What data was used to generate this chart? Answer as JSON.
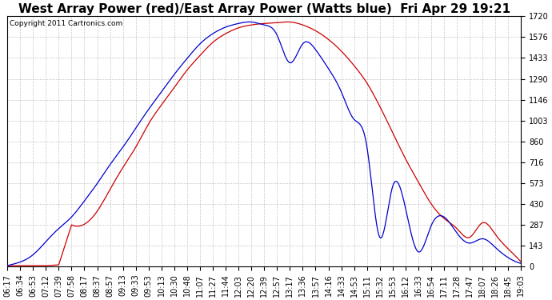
{
  "title": "West Array Power (red)/East Array Power (Watts blue)  Fri Apr 29 19:21",
  "copyright": "Copyright 2011 Cartronics.com",
  "ymin": 0.0,
  "ymax": 1719.5,
  "yticks": [
    0.0,
    143.3,
    286.6,
    429.9,
    573.2,
    716.5,
    859.8,
    1003.0,
    1146.3,
    1289.6,
    1432.9,
    1576.2,
    1719.5
  ],
  "xtick_labels": [
    "06:17",
    "06:34",
    "06:53",
    "07:12",
    "07:39",
    "07:58",
    "08:17",
    "08:37",
    "08:57",
    "09:13",
    "09:33",
    "09:53",
    "10:13",
    "10:30",
    "10:48",
    "11:07",
    "11:27",
    "11:44",
    "12:03",
    "12:20",
    "12:39",
    "12:57",
    "13:17",
    "13:36",
    "13:57",
    "14:16",
    "14:33",
    "14:53",
    "15:11",
    "15:32",
    "15:53",
    "16:12",
    "16:33",
    "16:54",
    "17:11",
    "17:28",
    "17:47",
    "18:07",
    "18:26",
    "18:45",
    "19:03"
  ],
  "red_line_color": "#cc0000",
  "blue_line_color": "#0000cc",
  "background_color": "#ffffff",
  "grid_color": "#999999",
  "title_fontsize": 11,
  "copyright_fontsize": 6.5,
  "tick_fontsize": 7
}
